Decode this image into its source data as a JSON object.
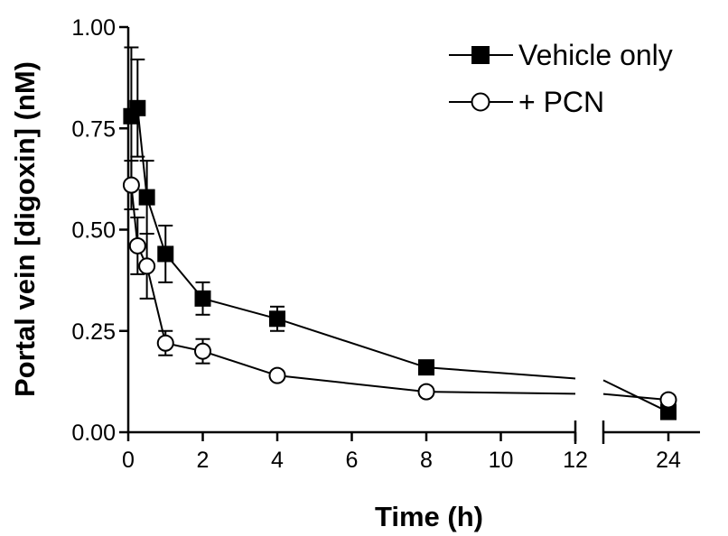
{
  "chart_data": {
    "type": "line",
    "xlabel": "Time (h)",
    "ylabel": "Portal vein [digoxin] (nM)",
    "xlim": [
      0,
      24
    ],
    "ylim": [
      0,
      1.0
    ],
    "x_axis_break": [
      12,
      24
    ],
    "x_ticks": [
      0,
      2,
      4,
      6,
      8,
      10,
      12,
      24
    ],
    "x_tick_labels": [
      "0",
      "2",
      "4",
      "6",
      "8",
      "10",
      "12",
      "24"
    ],
    "y_ticks": [
      0,
      0.25,
      0.5,
      0.75,
      1.0
    ],
    "y_tick_labels": [
      "0.00",
      "0.25",
      "0.50",
      "0.75",
      "1.00"
    ],
    "grid": false,
    "legend_position": "top-right",
    "series": [
      {
        "name": "Vehicle only",
        "marker": "filled-square",
        "x": [
          0.083,
          0.25,
          0.5,
          1,
          2,
          4,
          8,
          24
        ],
        "y": [
          0.78,
          0.8,
          0.58,
          0.44,
          0.33,
          0.28,
          0.16,
          0.05
        ],
        "error": [
          0.17,
          0.12,
          0.09,
          0.07,
          0.04,
          0.03,
          0.01,
          0.01
        ]
      },
      {
        "name": "+ PCN",
        "marker": "open-circle",
        "x": [
          0.083,
          0.25,
          0.5,
          1,
          2,
          4,
          8,
          24
        ],
        "y": [
          0.61,
          0.46,
          0.41,
          0.22,
          0.2,
          0.14,
          0.1,
          0.08
        ],
        "error": [
          0.06,
          0.07,
          0.08,
          0.03,
          0.03,
          0.01,
          0.01,
          0.01
        ]
      }
    ],
    "colors": {
      "line": "#000000",
      "filled_marker": "#000000",
      "open_marker_fill": "#ffffff"
    }
  }
}
